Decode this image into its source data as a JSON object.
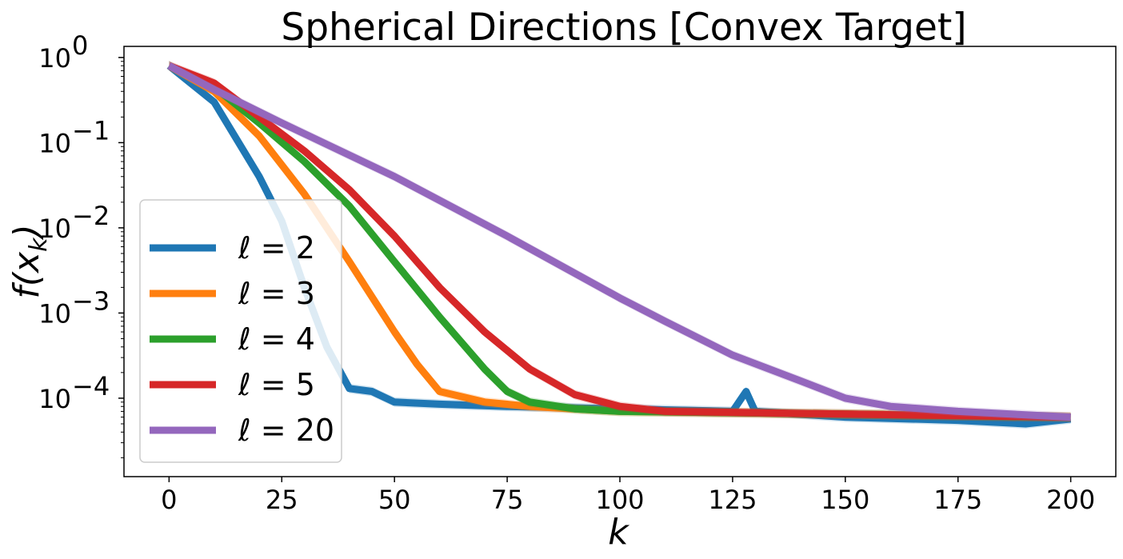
{
  "chart_data": {
    "type": "line",
    "title": "Spherical Directions [Convex Target]",
    "xlabel": "k",
    "ylabel": "f(x_k)",
    "xlim": [
      -10,
      210
    ],
    "ylim": [
      1.2e-05,
      1.35
    ],
    "yscale": "log",
    "xticks": [
      0,
      25,
      50,
      75,
      100,
      125,
      150,
      175,
      200
    ],
    "ytick_labels": [
      {
        "value": 1,
        "base": "10",
        "exp": "0"
      },
      {
        "value": 0.1,
        "base": "10",
        "exp": "−1"
      },
      {
        "value": 0.01,
        "base": "10",
        "exp": "−2"
      },
      {
        "value": 0.001,
        "base": "10",
        "exp": "−3"
      },
      {
        "value": 0.0001,
        "base": "10",
        "exp": "−4"
      }
    ],
    "grid": false,
    "legend_position": "lower-left",
    "series": [
      {
        "name": "ℓ = 2",
        "color": "#1f77b4",
        "x": [
          0,
          10,
          20,
          25,
          30,
          35,
          40,
          45,
          50,
          60,
          75,
          100,
          125,
          128,
          130,
          150,
          175,
          190,
          200
        ],
        "y": [
          0.8,
          0.3,
          0.04,
          0.012,
          0.002,
          0.0004,
          0.00013,
          0.00012,
          9e-05,
          8.5e-05,
          8e-05,
          7.5e-05,
          7e-05,
          0.00012,
          7e-05,
          6e-05,
          5.5e-05,
          5e-05,
          5.7e-05
        ]
      },
      {
        "name": "ℓ = 3",
        "color": "#ff7f0e",
        "x": [
          0,
          10,
          20,
          30,
          40,
          50,
          55,
          60,
          70,
          80,
          100,
          150,
          200
        ],
        "y": [
          0.8,
          0.4,
          0.12,
          0.025,
          0.004,
          0.0006,
          0.00025,
          0.00012,
          9e-05,
          8e-05,
          7e-05,
          6.5e-05,
          6e-05
        ]
      },
      {
        "name": "ℓ = 4",
        "color": "#2ca02c",
        "x": [
          0,
          10,
          20,
          30,
          40,
          50,
          60,
          70,
          75,
          80,
          90,
          100,
          150,
          200
        ],
        "y": [
          0.8,
          0.45,
          0.17,
          0.06,
          0.018,
          0.004,
          0.0009,
          0.00022,
          0.00012,
          9e-05,
          7.5e-05,
          7e-05,
          6.5e-05,
          6e-05
        ]
      },
      {
        "name": "ℓ = 5",
        "color": "#d62728",
        "x": [
          0,
          10,
          20,
          30,
          40,
          50,
          60,
          70,
          80,
          90,
          100,
          110,
          150,
          200
        ],
        "y": [
          0.8,
          0.5,
          0.2,
          0.08,
          0.028,
          0.008,
          0.002,
          0.0006,
          0.00022,
          0.00011,
          8e-05,
          7e-05,
          6.5e-05,
          6e-05
        ]
      },
      {
        "name": "ℓ = 20",
        "color": "#9467bd",
        "x": [
          0,
          10,
          25,
          50,
          75,
          100,
          110,
          125,
          140,
          150,
          160,
          175,
          200
        ],
        "y": [
          0.8,
          0.42,
          0.17,
          0.04,
          0.008,
          0.0015,
          0.0008,
          0.00032,
          0.00016,
          0.0001,
          8e-05,
          7e-05,
          6e-05
        ]
      }
    ]
  }
}
